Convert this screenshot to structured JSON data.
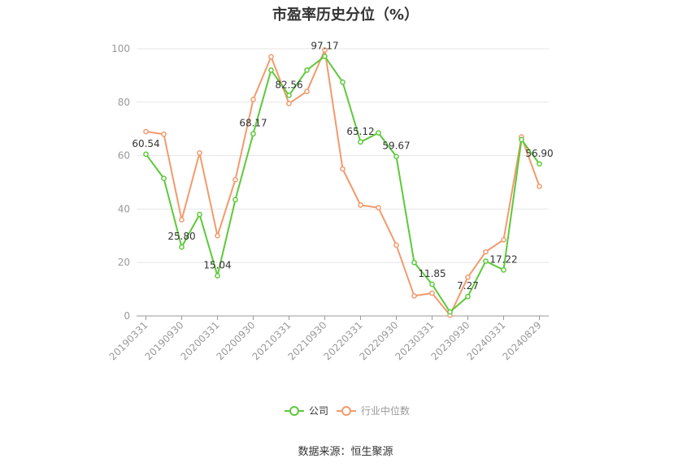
{
  "chart_data": {
    "type": "line",
    "title": "市盈率历史分位（%）",
    "source": "数据来源：恒生聚源",
    "ylim": [
      0,
      100
    ],
    "yticks": [
      0,
      20,
      40,
      60,
      80,
      100
    ],
    "grid": "horizontal",
    "legend_position": "bottom-center",
    "x": [
      "20190331",
      "20190630",
      "20190930",
      "20191231",
      "20200331",
      "20200630",
      "20200930",
      "20201231",
      "20210331",
      "20210630",
      "20210930",
      "20211231",
      "20220331",
      "20220630",
      "20220930",
      "20221231",
      "20230331",
      "20230630",
      "20230930",
      "20231231",
      "20240331",
      "20240630",
      "20240829"
    ],
    "xtick_labels": [
      "20190331",
      "20190930",
      "20200331",
      "20200930",
      "20210331",
      "20210930",
      "20220331",
      "20220930",
      "20230331",
      "20230930",
      "20240331",
      "20240829"
    ],
    "series": [
      {
        "name": "公司",
        "color": "#5cc93a",
        "values": [
          60.54,
          51.5,
          25.8,
          38.0,
          15.04,
          43.5,
          68.17,
          92.0,
          82.56,
          92.0,
          97.17,
          87.5,
          65.12,
          68.5,
          59.67,
          20.0,
          11.85,
          1.5,
          7.27,
          20.5,
          17.22,
          66.0,
          56.9
        ],
        "labeled_points": [
          {
            "index": 0,
            "text": "60.54"
          },
          {
            "index": 2,
            "text": "25.80"
          },
          {
            "index": 4,
            "text": "15.04"
          },
          {
            "index": 6,
            "text": "68.17"
          },
          {
            "index": 8,
            "text": "82.56"
          },
          {
            "index": 10,
            "text": "97.17"
          },
          {
            "index": 12,
            "text": "65.12"
          },
          {
            "index": 14,
            "text": "59.67"
          },
          {
            "index": 16,
            "text": "11.85"
          },
          {
            "index": 18,
            "text": "7.27"
          },
          {
            "index": 20,
            "text": "17.22"
          },
          {
            "index": 22,
            "text": "56.90"
          }
        ]
      },
      {
        "name": "行业中位数",
        "color": "#f29a6e",
        "values": [
          69.0,
          68.0,
          36.0,
          61.0,
          30.0,
          51.0,
          81.0,
          97.0,
          79.5,
          84.0,
          99.5,
          55.0,
          41.5,
          40.5,
          26.5,
          7.5,
          8.5,
          0.3,
          14.5,
          24.0,
          28.5,
          67.0,
          48.5
        ]
      }
    ]
  }
}
